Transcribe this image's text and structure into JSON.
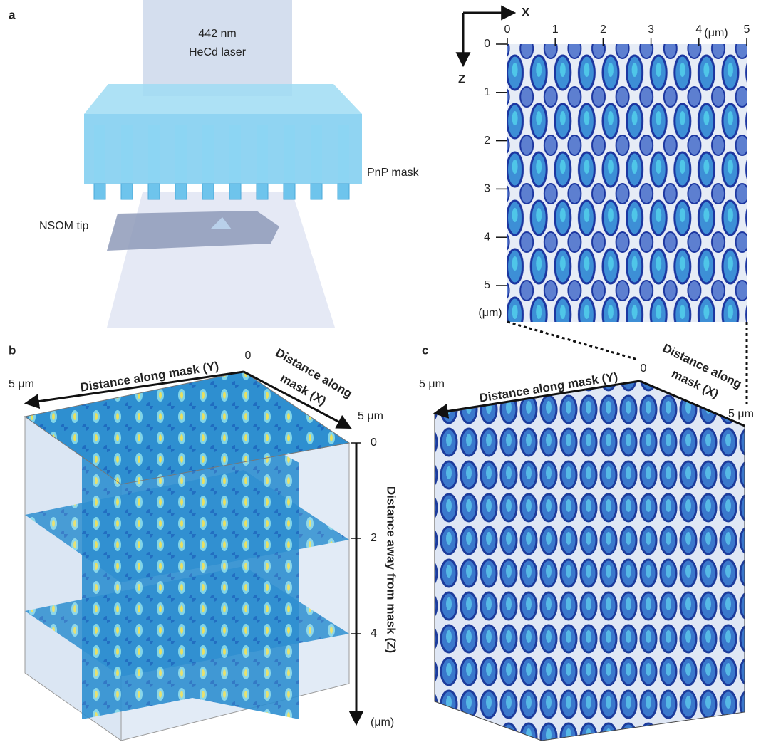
{
  "panel_a": {
    "label": "a",
    "laser": [
      "442 nm",
      "HeCd laser"
    ],
    "mask_label": "PnP mask",
    "tip_label": "NSOM tip"
  },
  "panel_a_inset": {
    "x_axis": "X",
    "z_axis": "Z",
    "xticks": [
      0,
      1,
      2,
      3,
      4,
      5
    ],
    "zticks": [
      0,
      1,
      2,
      3,
      4,
      5
    ],
    "x_unit": "(μm)",
    "z_unit": "(μm)"
  },
  "panel_b": {
    "label": "b",
    "y_axis": "Distance along mask (Y)",
    "y_start": 0,
    "y_end": "5 μm",
    "x_axis": [
      "Distance along",
      "mask (X)"
    ],
    "x_end": "5 μm",
    "z_axis": "Distance away from mask (Z)",
    "zticks": [
      0,
      2,
      4
    ],
    "z_unit": "(μm)"
  },
  "panel_c": {
    "label": "c",
    "y_axis": "Distance along mask (Y)",
    "y_start": 0,
    "y_end": "5 μm",
    "x_axis": [
      "Distance along",
      "mask (X)"
    ],
    "x_end": "5 μm"
  }
}
